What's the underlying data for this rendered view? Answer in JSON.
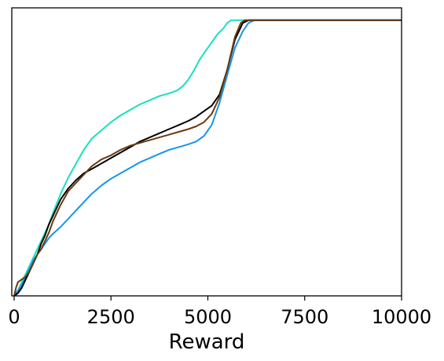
{
  "chart_data": {
    "type": "line",
    "title": "",
    "xlabel": "Reward",
    "ylabel": "",
    "xlim": [
      -60,
      10000
    ],
    "ylim": [
      0,
      1.045
    ],
    "xticks": [
      0,
      2500,
      5000,
      7500,
      10000
    ],
    "xtick_labels": [
      "0",
      "2500",
      "5000",
      "7500",
      "10000"
    ],
    "yticks": [],
    "grid": false,
    "legend": "none",
    "series": [
      {
        "color": "#17e0c2",
        "x": [
          0,
          100,
          200,
          300,
          400,
          500,
          600,
          700,
          800,
          900,
          1000,
          1200,
          1400,
          1600,
          1800,
          2000,
          2250,
          2500,
          2750,
          3000,
          3250,
          3500,
          3750,
          4000,
          4200,
          4350,
          4500,
          4650,
          4800,
          4950,
          5100,
          5250,
          5400,
          5500,
          5600,
          5700,
          5800,
          6000,
          10000
        ],
        "y": [
          0,
          0.02,
          0.05,
          0.08,
          0.11,
          0.14,
          0.17,
          0.2,
          0.23,
          0.26,
          0.3,
          0.37,
          0.43,
          0.48,
          0.53,
          0.57,
          0.6,
          0.63,
          0.655,
          0.675,
          0.695,
          0.71,
          0.725,
          0.735,
          0.745,
          0.76,
          0.785,
          0.82,
          0.86,
          0.89,
          0.92,
          0.95,
          0.97,
          0.99,
          1.0,
          1.0,
          1.0,
          1.0,
          1.0
        ]
      },
      {
        "color": "#1596e8",
        "x": [
          0,
          100,
          200,
          300,
          400,
          500,
          600,
          700,
          800,
          900,
          1000,
          1200,
          1400,
          1600,
          1800,
          2000,
          2250,
          2500,
          2750,
          3000,
          3250,
          3500,
          3750,
          4000,
          4250,
          4500,
          4700,
          4900,
          5100,
          5300,
          5500,
          5700,
          5900,
          6050,
          6200,
          10000
        ],
        "y": [
          0,
          0.02,
          0.04,
          0.07,
          0.1,
          0.13,
          0.15,
          0.17,
          0.19,
          0.21,
          0.225,
          0.25,
          0.28,
          0.31,
          0.34,
          0.37,
          0.4,
          0.425,
          0.445,
          0.465,
          0.485,
          0.5,
          0.515,
          0.53,
          0.54,
          0.55,
          0.56,
          0.58,
          0.62,
          0.7,
          0.8,
          0.9,
          0.96,
          0.99,
          1.0,
          1.0
        ]
      },
      {
        "color": "#000000",
        "x": [
          0,
          100,
          200,
          300,
          400,
          500,
          600,
          700,
          800,
          900,
          1000,
          1200,
          1400,
          1600,
          1800,
          2000,
          2250,
          2500,
          2750,
          3000,
          3250,
          3500,
          3750,
          4000,
          4250,
          4500,
          4700,
          4900,
          5100,
          5300,
          5500,
          5700,
          5900,
          6050,
          10000
        ],
        "y": [
          0,
          0.01,
          0.03,
          0.06,
          0.09,
          0.12,
          0.15,
          0.19,
          0.22,
          0.26,
          0.29,
          0.35,
          0.39,
          0.42,
          0.445,
          0.46,
          0.48,
          0.5,
          0.52,
          0.54,
          0.56,
          0.575,
          0.59,
          0.605,
          0.62,
          0.635,
          0.65,
          0.67,
          0.69,
          0.73,
          0.82,
          0.93,
          0.99,
          1.0,
          1.0
        ]
      },
      {
        "color": "#6b3a0e",
        "x": [
          0,
          50,
          100,
          200,
          300,
          400,
          500,
          600,
          700,
          800,
          900,
          1000,
          1200,
          1400,
          1600,
          1800,
          2000,
          2250,
          2500,
          2750,
          3000,
          3250,
          3500,
          3750,
          4000,
          4250,
          4500,
          4700,
          4900,
          5100,
          5300,
          5500,
          5700,
          5850,
          5950,
          10000
        ],
        "y": [
          0,
          0.03,
          0.05,
          0.06,
          0.07,
          0.09,
          0.12,
          0.15,
          0.17,
          0.2,
          0.23,
          0.27,
          0.33,
          0.38,
          0.41,
          0.44,
          0.47,
          0.495,
          0.51,
          0.53,
          0.545,
          0.555,
          0.565,
          0.575,
          0.585,
          0.595,
          0.605,
          0.615,
          0.63,
          0.66,
          0.72,
          0.82,
          0.94,
          0.99,
          1.0,
          1.0
        ]
      }
    ]
  }
}
